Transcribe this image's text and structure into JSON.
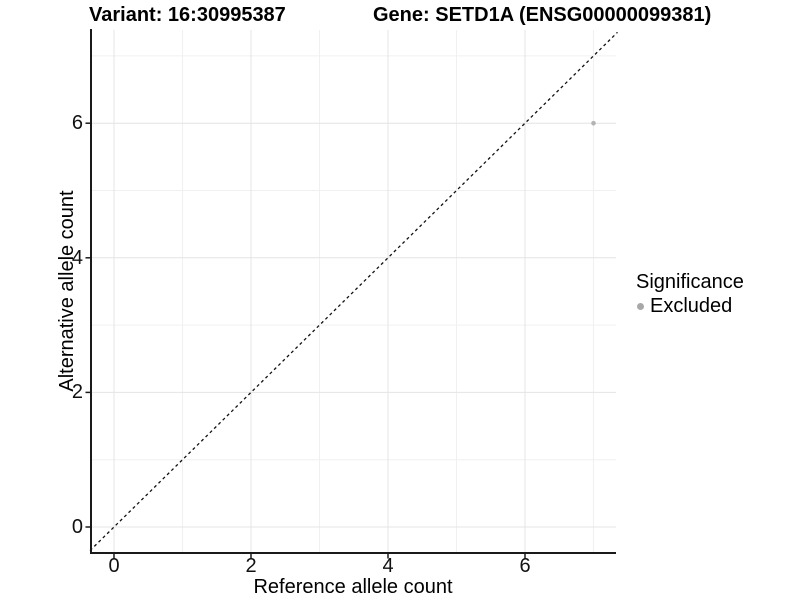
{
  "title": {
    "variant": "Variant: 16:30995387",
    "gene": "Gene: SETD1A (ENSG00000099381)"
  },
  "axes": {
    "x": {
      "label": "Reference allele count"
    },
    "y": {
      "label": "Alternative allele count"
    }
  },
  "legend": {
    "title": "Significance",
    "items": [
      {
        "label": "Excluded",
        "color": "#a8a8a8"
      }
    ]
  },
  "colors": {
    "point": "#b3b3b3",
    "grid_major": "#e4e4e4",
    "grid_minor": "#f0f0f0",
    "axis": "#1a1a1a",
    "identity_line": "#111111"
  },
  "chart_data": {
    "type": "scatter",
    "title": "Variant: 16:30995387   Gene: SETD1A (ENSG00000099381)",
    "xlabel": "Reference allele count",
    "ylabel": "Alternative allele count",
    "xlim": [
      -0.35,
      7.35
    ],
    "ylim": [
      -0.35,
      7.35
    ],
    "x_ticks": [
      0,
      2,
      4,
      6
    ],
    "y_ticks": [
      0,
      2,
      4,
      6
    ],
    "x_minor_gridlines": [
      1,
      3,
      5,
      7
    ],
    "y_minor_gridlines": [
      1,
      3,
      5,
      7
    ],
    "grid": true,
    "legend_position": "right",
    "legend_title": "Significance",
    "series": [
      {
        "name": "Excluded",
        "color": "#b3b3b3",
        "points": [
          {
            "x": 7,
            "y": 6
          }
        ]
      }
    ],
    "reference_line": {
      "type": "identity y=x",
      "style": "dashed",
      "from": [
        -0.35,
        -0.35
      ],
      "to": [
        7.35,
        7.35
      ]
    }
  }
}
